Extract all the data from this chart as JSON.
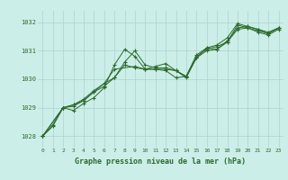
{
  "title": "Graphe pression niveau de la mer (hPa)",
  "background_color": "#cceee8",
  "line_color": "#2d6a2d",
  "grid_color": "#aad4cc",
  "xlim": [
    -0.5,
    23.5
  ],
  "ylim": [
    1027.6,
    1032.4
  ],
  "yticks": [
    1028,
    1029,
    1030,
    1031,
    1032
  ],
  "xticks": [
    0,
    1,
    2,
    3,
    4,
    5,
    6,
    7,
    8,
    9,
    10,
    11,
    12,
    13,
    14,
    15,
    16,
    17,
    18,
    19,
    20,
    21,
    22,
    23
  ],
  "series": [
    [
      0,
      1028.0
    ],
    [
      1,
      1028.4
    ],
    [
      2,
      1029.0
    ],
    [
      3,
      1028.9
    ],
    [
      4,
      1029.15
    ],
    [
      5,
      1029.35
    ],
    [
      6,
      1029.7
    ],
    [
      7,
      1030.5
    ],
    [
      8,
      1031.05
    ],
    [
      9,
      1030.8
    ],
    [
      10,
      1030.35
    ],
    [
      11,
      1030.35
    ],
    [
      12,
      1030.35
    ],
    [
      13,
      1030.3
    ],
    [
      14,
      1030.05
    ],
    [
      15,
      1030.75
    ],
    [
      16,
      1031.1
    ],
    [
      17,
      1031.05
    ],
    [
      18,
      1031.35
    ],
    [
      19,
      1031.8
    ],
    [
      20,
      1031.85
    ],
    [
      21,
      1031.75
    ],
    [
      22,
      1031.6
    ],
    [
      23,
      1031.8
    ]
  ],
  "series2": [
    [
      0,
      1028.0
    ],
    [
      2,
      1029.0
    ],
    [
      3,
      1029.05
    ],
    [
      4,
      1029.25
    ],
    [
      5,
      1029.55
    ],
    [
      6,
      1029.85
    ],
    [
      7,
      1030.35
    ],
    [
      9,
      1030.45
    ],
    [
      10,
      1030.35
    ],
    [
      11,
      1030.45
    ],
    [
      12,
      1030.55
    ],
    [
      13,
      1030.3
    ],
    [
      14,
      1030.1
    ],
    [
      15,
      1030.85
    ],
    [
      16,
      1031.1
    ],
    [
      17,
      1031.2
    ],
    [
      18,
      1031.45
    ],
    [
      19,
      1031.95
    ],
    [
      20,
      1031.85
    ],
    [
      21,
      1031.75
    ],
    [
      22,
      1031.65
    ],
    [
      23,
      1031.8
    ]
  ],
  "series3": [
    [
      0,
      1028.0
    ],
    [
      2,
      1029.0
    ],
    [
      3,
      1029.1
    ],
    [
      4,
      1029.3
    ],
    [
      5,
      1029.6
    ],
    [
      6,
      1029.85
    ],
    [
      7,
      1030.05
    ],
    [
      8,
      1030.6
    ],
    [
      9,
      1031.0
    ],
    [
      10,
      1030.5
    ],
    [
      11,
      1030.4
    ],
    [
      12,
      1030.4
    ],
    [
      13,
      1030.3
    ],
    [
      14,
      1030.1
    ],
    [
      15,
      1030.8
    ],
    [
      16,
      1031.05
    ],
    [
      17,
      1031.15
    ],
    [
      18,
      1031.3
    ],
    [
      19,
      1031.9
    ],
    [
      20,
      1031.8
    ],
    [
      21,
      1031.7
    ],
    [
      22,
      1031.6
    ],
    [
      23,
      1031.8
    ]
  ],
  "series4": [
    [
      0,
      1028.0
    ],
    [
      1,
      1028.35
    ],
    [
      2,
      1029.0
    ],
    [
      3,
      1029.1
    ],
    [
      4,
      1029.25
    ],
    [
      5,
      1029.55
    ],
    [
      6,
      1029.75
    ],
    [
      7,
      1030.05
    ],
    [
      8,
      1030.5
    ],
    [
      9,
      1030.4
    ],
    [
      10,
      1030.35
    ],
    [
      11,
      1030.35
    ],
    [
      12,
      1030.3
    ],
    [
      13,
      1030.05
    ],
    [
      14,
      1030.1
    ],
    [
      15,
      1030.75
    ],
    [
      16,
      1031.0
    ],
    [
      17,
      1031.05
    ],
    [
      18,
      1031.3
    ],
    [
      19,
      1031.75
    ],
    [
      20,
      1031.8
    ],
    [
      21,
      1031.65
    ],
    [
      22,
      1031.55
    ],
    [
      23,
      1031.75
    ]
  ]
}
